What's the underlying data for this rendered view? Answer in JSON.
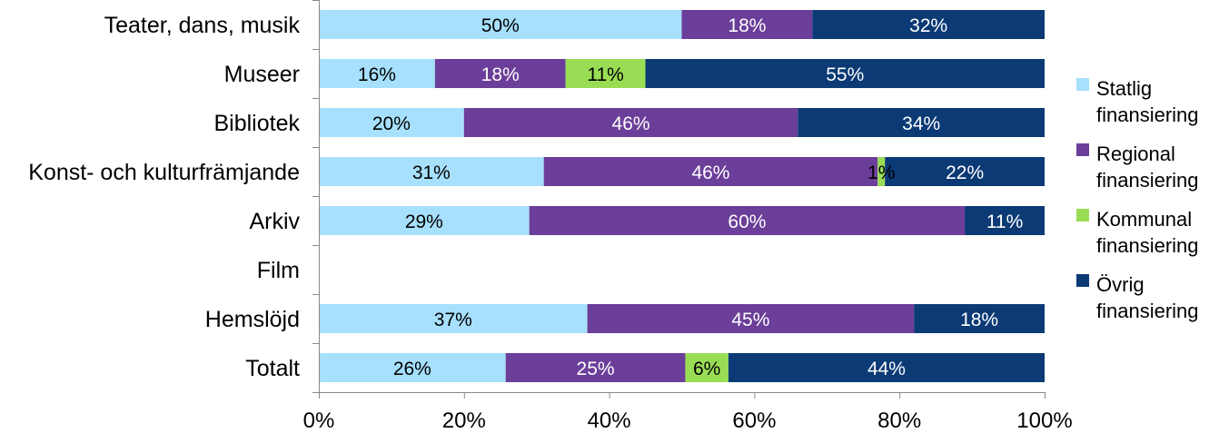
{
  "chart_data": {
    "type": "bar",
    "orientation": "horizontal",
    "stacked": "percent",
    "title": "",
    "xlabel": "",
    "ylabel": "",
    "xlim": [
      0,
      100
    ],
    "x_tick_labels": [
      "0%",
      "20%",
      "40%",
      "60%",
      "80%",
      "100%"
    ],
    "categories": [
      "Teater, dans, musik",
      "Museer",
      "Bibliotek",
      "Konst- och kulturfrämjande",
      "Arkiv",
      "Film",
      "Hemslöjd",
      "Totalt"
    ],
    "series": [
      {
        "name": "Statlig finansiering",
        "legend_lines": [
          "Statlig",
          "finansiering"
        ],
        "color": "#a6e0fc",
        "label_color": "#000000",
        "values": [
          50,
          16,
          20,
          31,
          29,
          null,
          37,
          26
        ]
      },
      {
        "name": "Regional finansiering",
        "legend_lines": [
          "Regional",
          "finansiering"
        ],
        "color": "#6b3e99",
        "label_color": "#ffffff",
        "values": [
          18,
          18,
          46,
          46,
          60,
          null,
          45,
          25
        ]
      },
      {
        "name": "Kommunal finansiering",
        "legend_lines": [
          "Kommunal",
          "finansiering"
        ],
        "color": "#99dd55",
        "label_color": "#000000",
        "values": [
          null,
          11,
          null,
          1,
          null,
          null,
          null,
          6
        ]
      },
      {
        "name": "Övrig finansiering",
        "legend_lines": [
          "Övrig",
          "finansiering"
        ],
        "color": "#0b3a75",
        "label_color": "#ffffff",
        "values": [
          32,
          55,
          34,
          22,
          11,
          null,
          18,
          44
        ]
      }
    ],
    "grid": false,
    "legend_position": "right"
  }
}
